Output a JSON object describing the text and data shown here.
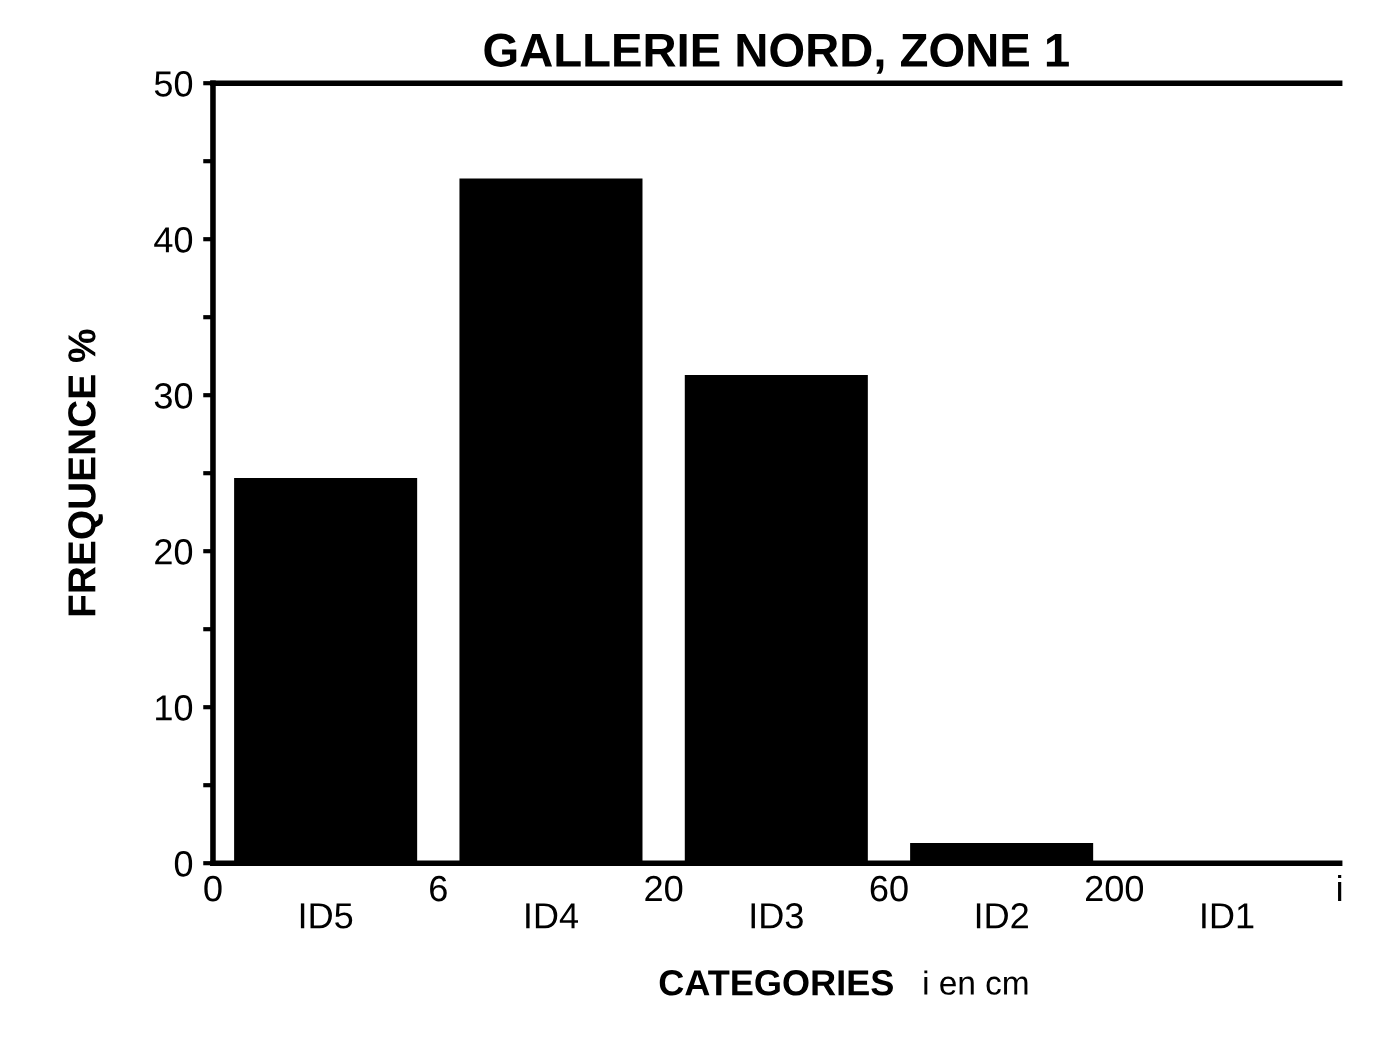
{
  "chart_data": {
    "type": "bar",
    "title": "GALLERIE NORD, ZONE 1",
    "xlabel": "CATEGORIES",
    "ylabel": "FREQUENCE %",
    "categories": [
      "ID5",
      "ID4",
      "ID3",
      "ID2",
      "ID1"
    ],
    "values": [
      24.6,
      43.8,
      31.2,
      1.2,
      0
    ],
    "color": "#000000",
    "ylim": [
      0,
      50
    ],
    "yticks": [
      0,
      {
        "value": 5,
        "label": null
      },
      10,
      {
        "value": 15,
        "label": null
      },
      20,
      {
        "value": 25,
        "label": null
      },
      30,
      {
        "value": 35,
        "label": null
      },
      40,
      {
        "value": 45,
        "label": null
      },
      50
    ],
    "annotations": [
      "0",
      "6",
      "20",
      "60",
      "200",
      "i",
      "i en cm"
    ],
    "grid": false,
    "legend": false
  }
}
